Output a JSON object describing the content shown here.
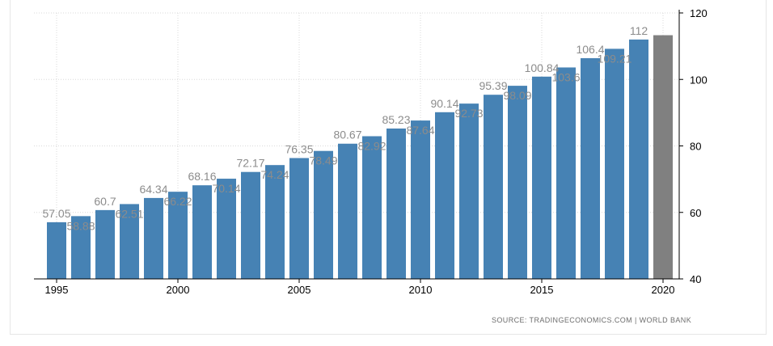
{
  "chart_data": {
    "type": "bar",
    "title": "",
    "xlabel": "",
    "ylabel": "",
    "x": [
      1995,
      1996,
      1997,
      1998,
      1999,
      2000,
      2001,
      2002,
      2003,
      2004,
      2005,
      2006,
      2007,
      2008,
      2009,
      2010,
      2011,
      2012,
      2013,
      2014,
      2015,
      2016,
      2017,
      2018,
      2019,
      2020
    ],
    "values": [
      57.05,
      58.88,
      60.7,
      62.51,
      64.34,
      66.22,
      68.16,
      70.14,
      72.17,
      74.24,
      76.35,
      78.49,
      80.67,
      82.92,
      85.23,
      87.64,
      90.14,
      92.73,
      95.39,
      98.09,
      100.84,
      103.6,
      106.4,
      109.21,
      112,
      113.3
    ],
    "value_labels": [
      "57.05",
      "58.88",
      "60.7",
      "62.51",
      "64.34",
      "66.22",
      "68.16",
      "70.14",
      "72.17",
      "74.24",
      "76.35",
      "78.49",
      "80.67",
      "82.92",
      "85.23",
      "87.64",
      "90.14",
      "92.73",
      "95.39",
      "98.09",
      "100.84",
      "103.6",
      "106.4",
      "109.21",
      "112",
      ""
    ],
    "bar_colors": [
      "#4682b4",
      "#4682b4",
      "#4682b4",
      "#4682b4",
      "#4682b4",
      "#4682b4",
      "#4682b4",
      "#4682b4",
      "#4682b4",
      "#4682b4",
      "#4682b4",
      "#4682b4",
      "#4682b4",
      "#4682b4",
      "#4682b4",
      "#4682b4",
      "#4682b4",
      "#4682b4",
      "#4682b4",
      "#4682b4",
      "#4682b4",
      "#4682b4",
      "#4682b4",
      "#4682b4",
      "#4682b4",
      "#808080"
    ],
    "x_ticks": [
      "1995",
      "2000",
      "2005",
      "2010",
      "2015",
      "2020"
    ],
    "y_ticks": [
      "40",
      "60",
      "80",
      "100",
      "120"
    ],
    "ylim": [
      40,
      120
    ],
    "grid": true,
    "legend": "none"
  },
  "source": "SOURCE: TRADINGECONOMICS.COM | WORLD BANK",
  "colors": {
    "bar": "#4682b4",
    "forecast_bar": "#808080",
    "grid": "#d9d9d9",
    "value_label": "#8c8c8c"
  }
}
